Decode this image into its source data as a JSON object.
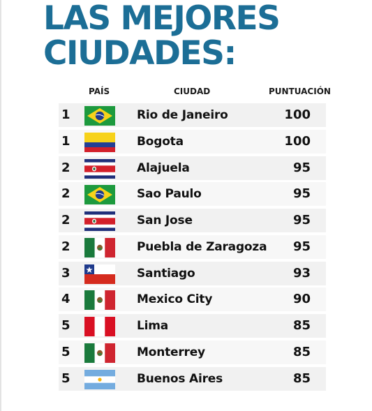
{
  "title": {
    "line1": "LAS MEJORES",
    "line2": "CIUDADES:"
  },
  "headers": {
    "country": "PAÍS",
    "city": "CIUDAD",
    "score": "PUNTUACIÓN"
  },
  "rows": [
    {
      "rank": "1",
      "flag": "brazil-flag-icon",
      "city": "Rio de Janeiro",
      "score": "100"
    },
    {
      "rank": "1",
      "flag": "colombia-flag-icon",
      "city": "Bogota",
      "score": "100"
    },
    {
      "rank": "2",
      "flag": "costa-rica-flag-icon",
      "city": "Alajuela",
      "score": "95"
    },
    {
      "rank": "2",
      "flag": "brazil-flag-icon",
      "city": "Sao Paulo",
      "score": "95"
    },
    {
      "rank": "2",
      "flag": "costa-rica-flag-icon",
      "city": "San Jose",
      "score": "95"
    },
    {
      "rank": "2",
      "flag": "mexico-flag-icon",
      "city": "Puebla de Zaragoza",
      "score": "95"
    },
    {
      "rank": "3",
      "flag": "chile-flag-icon",
      "city": "Santiago",
      "score": "93"
    },
    {
      "rank": "4",
      "flag": "mexico-flag-icon",
      "city": "Mexico City",
      "score": "90"
    },
    {
      "rank": "5",
      "flag": "peru-flag-icon",
      "city": "Lima",
      "score": "85"
    },
    {
      "rank": "5",
      "flag": "mexico-flag-icon",
      "city": "Monterrey",
      "score": "85"
    },
    {
      "rank": "5",
      "flag": "argentina-flag-icon",
      "city": "Buenos Aires",
      "score": "85"
    }
  ],
  "colors": {
    "title": "#1c6e96",
    "row_bg": "#f1f1f1",
    "text": "#111111"
  }
}
